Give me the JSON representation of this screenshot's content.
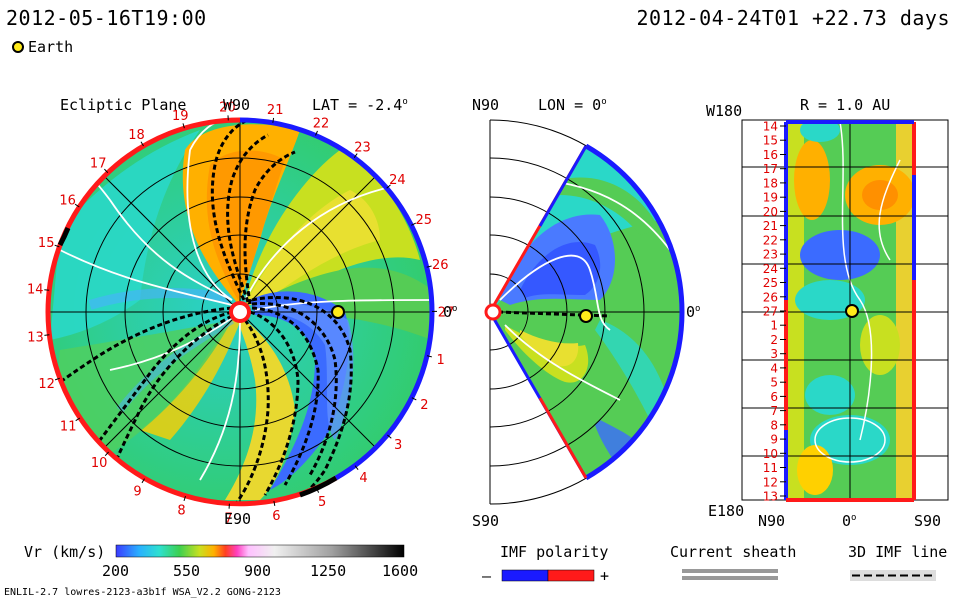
{
  "header": {
    "sim_time": "2012-05-16T19:00",
    "run_info": "2012-04-24T01 +22.73 days",
    "legend_earth": "Earth"
  },
  "ecliptic": {
    "title": "Ecliptic Plane",
    "top_label": "W90",
    "bottom_label": "E90",
    "lat_text": "LAT = -2.4",
    "right_label": "0",
    "carrington": [
      "20",
      "21",
      "22",
      "23",
      "24",
      "25",
      "26",
      "27",
      "1",
      "2",
      "3",
      "4",
      "5",
      "6",
      "7",
      "8",
      "9",
      "10",
      "11",
      "12",
      "13",
      "14",
      "15",
      "16",
      "17",
      "18",
      "19"
    ]
  },
  "meridional": {
    "top_label": "N90",
    "bottom_label": "S90",
    "lon_text": "LON = 0",
    "right_label": "0"
  },
  "map": {
    "title": "R = 1.0 AU",
    "top_left": "W180",
    "bottom_left": "E180",
    "x_ticks": [
      "N90",
      "0",
      "S90"
    ],
    "rot_ticks": [
      "14",
      "15",
      "16",
      "17",
      "18",
      "19",
      "20",
      "21",
      "22",
      "23",
      "24",
      "25",
      "26",
      "27",
      "1",
      "2",
      "3",
      "4",
      "5",
      "6",
      "7",
      "8",
      "9",
      "10",
      "11",
      "12",
      "13"
    ]
  },
  "colorbar": {
    "label": "Vr (km/s)",
    "ticks": [
      "200",
      "550",
      "900",
      "1250",
      "1600"
    ],
    "range": [
      200,
      1600
    ]
  },
  "legends": {
    "imf_polarity": "IMF polarity",
    "minus": "–",
    "plus": "+",
    "current_sheath": "Current sheath",
    "imf_3d": "3D IMF line"
  },
  "footer": {
    "model_info": "ENLIL-2.7 lowres-2123-a3b1f WSA_V2.2 GONG-2123"
  },
  "colors": {
    "positive_polarity": "#ff1a1a",
    "negative_polarity": "#1a1aff",
    "slow_wind": "#33cccc",
    "medium_wind": "#44cc44",
    "fast_wind": "#ffb000",
    "earth": "#ffeb1a"
  },
  "chart_data": [
    {
      "type": "heatmap",
      "title": "Ecliptic Plane",
      "quantity": "Vr (km/s)",
      "value_range": [
        200,
        1600
      ],
      "earth": {
        "name": "Earth",
        "carrington_label": "27"
      }
    },
    {
      "type": "heatmap",
      "title": "LON = 0",
      "quantity": "Vr (km/s)",
      "value_range": [
        200,
        1600
      ]
    },
    {
      "type": "heatmap",
      "title": "R = 1.0 AU",
      "quantity": "Vr (km/s)",
      "value_range": [
        200,
        1600
      ]
    }
  ]
}
